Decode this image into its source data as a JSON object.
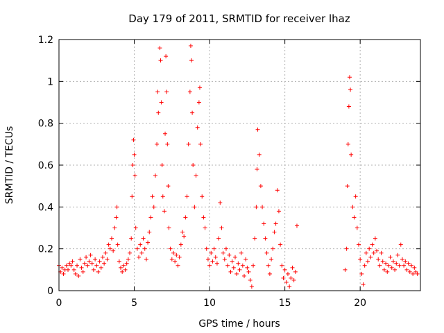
{
  "chart_data": {
    "type": "scatter",
    "title": "Day 179 of 2011, SRMTID for receiver lhaz",
    "xlabel": "GPS time / hours",
    "ylabel": "SRMTID / TECUs",
    "xlim": [
      0,
      24
    ],
    "ylim": [
      0,
      1.2
    ],
    "xticks": [
      0,
      5,
      10,
      15,
      20
    ],
    "xtick_labels": [
      "0",
      "5",
      "10",
      "15",
      "20"
    ],
    "yticks": [
      0,
      0.2,
      0.4,
      0.6,
      0.8,
      1.0,
      1.2
    ],
    "ytick_labels": [
      "0",
      "0.2",
      "0.4",
      "0.6",
      "0.8",
      "1",
      "1.2"
    ],
    "grid": true,
    "marker": "plus",
    "color": "#ff0000",
    "series": [
      {
        "name": "SRMTID",
        "points": [
          [
            0.0,
            0.12
          ],
          [
            0.1,
            0.09
          ],
          [
            0.2,
            0.11
          ],
          [
            0.3,
            0.08
          ],
          [
            0.4,
            0.1
          ],
          [
            0.5,
            0.12
          ],
          [
            0.6,
            0.1
          ],
          [
            0.7,
            0.13
          ],
          [
            0.8,
            0.12
          ],
          [
            0.9,
            0.14
          ],
          [
            1.0,
            0.1
          ],
          [
            1.1,
            0.08
          ],
          [
            1.2,
            0.12
          ],
          [
            1.3,
            0.07
          ],
          [
            1.4,
            0.15
          ],
          [
            1.5,
            0.11
          ],
          [
            1.6,
            0.09
          ],
          [
            1.7,
            0.13
          ],
          [
            1.8,
            0.16
          ],
          [
            1.9,
            0.12
          ],
          [
            2.0,
            0.14
          ],
          [
            2.1,
            0.17
          ],
          [
            2.2,
            0.13
          ],
          [
            2.3,
            0.1
          ],
          [
            2.4,
            0.15
          ],
          [
            2.5,
            0.12
          ],
          [
            2.6,
            0.09
          ],
          [
            2.7,
            0.14
          ],
          [
            2.8,
            0.11
          ],
          [
            2.9,
            0.16
          ],
          [
            3.0,
            0.13
          ],
          [
            3.1,
            0.18
          ],
          [
            3.2,
            0.15
          ],
          [
            3.3,
            0.22
          ],
          [
            3.4,
            0.2
          ],
          [
            3.5,
            0.25
          ],
          [
            3.6,
            0.19
          ],
          [
            3.7,
            0.3
          ],
          [
            3.8,
            0.35
          ],
          [
            3.85,
            0.4
          ],
          [
            3.9,
            0.22
          ],
          [
            4.0,
            0.14
          ],
          [
            4.1,
            0.11
          ],
          [
            4.2,
            0.09
          ],
          [
            4.3,
            0.12
          ],
          [
            4.4,
            0.1
          ],
          [
            4.5,
            0.13
          ],
          [
            4.6,
            0.15
          ],
          [
            4.7,
            0.18
          ],
          [
            4.8,
            0.25
          ],
          [
            4.85,
            0.45
          ],
          [
            4.9,
            0.6
          ],
          [
            4.95,
            0.72
          ],
          [
            5.0,
            0.65
          ],
          [
            5.05,
            0.55
          ],
          [
            5.1,
            0.3
          ],
          [
            5.2,
            0.2
          ],
          [
            5.3,
            0.16
          ],
          [
            5.4,
            0.22
          ],
          [
            5.5,
            0.18
          ],
          [
            5.6,
            0.25
          ],
          [
            5.7,
            0.2
          ],
          [
            5.8,
            0.15
          ],
          [
            5.9,
            0.23
          ],
          [
            6.0,
            0.28
          ],
          [
            6.1,
            0.35
          ],
          [
            6.2,
            0.45
          ],
          [
            6.3,
            0.4
          ],
          [
            6.4,
            0.55
          ],
          [
            6.5,
            0.7
          ],
          [
            6.55,
            0.95
          ],
          [
            6.6,
            0.85
          ],
          [
            6.7,
            1.16
          ],
          [
            6.75,
            1.1
          ],
          [
            6.8,
            0.9
          ],
          [
            6.85,
            0.6
          ],
          [
            6.9,
            0.45
          ],
          [
            7.0,
            0.38
          ],
          [
            7.05,
            0.75
          ],
          [
            7.1,
            1.12
          ],
          [
            7.15,
            0.95
          ],
          [
            7.2,
            0.7
          ],
          [
            7.25,
            0.5
          ],
          [
            7.3,
            0.3
          ],
          [
            7.4,
            0.2
          ],
          [
            7.5,
            0.15
          ],
          [
            7.6,
            0.18
          ],
          [
            7.7,
            0.14
          ],
          [
            7.8,
            0.17
          ],
          [
            7.9,
            0.12
          ],
          [
            8.0,
            0.16
          ],
          [
            8.1,
            0.22
          ],
          [
            8.2,
            0.28
          ],
          [
            8.3,
            0.26
          ],
          [
            8.4,
            0.35
          ],
          [
            8.5,
            0.45
          ],
          [
            8.6,
            0.7
          ],
          [
            8.7,
            0.95
          ],
          [
            8.75,
            1.17
          ],
          [
            8.8,
            1.1
          ],
          [
            8.85,
            0.85
          ],
          [
            8.9,
            0.6
          ],
          [
            9.0,
            0.4
          ],
          [
            9.1,
            0.55
          ],
          [
            9.2,
            0.78
          ],
          [
            9.3,
            0.9
          ],
          [
            9.35,
            0.97
          ],
          [
            9.4,
            0.7
          ],
          [
            9.5,
            0.45
          ],
          [
            9.6,
            0.35
          ],
          [
            9.7,
            0.3
          ],
          [
            9.8,
            0.2
          ],
          [
            9.9,
            0.15
          ],
          [
            10.0,
            0.12
          ],
          [
            10.1,
            0.18
          ],
          [
            10.2,
            0.14
          ],
          [
            10.3,
            0.2
          ],
          [
            10.4,
            0.16
          ],
          [
            10.5,
            0.13
          ],
          [
            10.6,
            0.25
          ],
          [
            10.7,
            0.42
          ],
          [
            10.8,
            0.3
          ],
          [
            10.9,
            0.18
          ],
          [
            11.0,
            0.15
          ],
          [
            11.1,
            0.2
          ],
          [
            11.2,
            0.12
          ],
          [
            11.3,
            0.17
          ],
          [
            11.4,
            0.09
          ],
          [
            11.5,
            0.14
          ],
          [
            11.6,
            0.11
          ],
          [
            11.7,
            0.16
          ],
          [
            11.8,
            0.08
          ],
          [
            11.9,
            0.13
          ],
          [
            12.0,
            0.1
          ],
          [
            12.1,
            0.18
          ],
          [
            12.2,
            0.12
          ],
          [
            12.3,
            0.07
          ],
          [
            12.4,
            0.15
          ],
          [
            12.5,
            0.11
          ],
          [
            12.6,
            0.09
          ],
          [
            12.7,
            0.05
          ],
          [
            12.8,
            0.02
          ],
          [
            12.9,
            0.12
          ],
          [
            13.0,
            0.25
          ],
          [
            13.1,
            0.4
          ],
          [
            13.15,
            0.58
          ],
          [
            13.2,
            0.77
          ],
          [
            13.3,
            0.65
          ],
          [
            13.4,
            0.5
          ],
          [
            13.5,
            0.4
          ],
          [
            13.6,
            0.32
          ],
          [
            13.7,
            0.25
          ],
          [
            13.8,
            0.18
          ],
          [
            13.9,
            0.12
          ],
          [
            14.0,
            0.08
          ],
          [
            14.1,
            0.15
          ],
          [
            14.2,
            0.2
          ],
          [
            14.3,
            0.28
          ],
          [
            14.4,
            0.32
          ],
          [
            14.5,
            0.48
          ],
          [
            14.6,
            0.38
          ],
          [
            14.7,
            0.22
          ],
          [
            14.8,
            0.12
          ],
          [
            14.9,
            0.06
          ],
          [
            15.0,
            0.1
          ],
          [
            15.1,
            0.04
          ],
          [
            15.2,
            0.08
          ],
          [
            15.3,
            0.02
          ],
          [
            15.4,
            0.06
          ],
          [
            15.5,
            0.11
          ],
          [
            15.6,
            0.05
          ],
          [
            15.7,
            0.09
          ],
          [
            15.8,
            0.31
          ],
          [
            19.0,
            0.1
          ],
          [
            19.1,
            0.2
          ],
          [
            19.15,
            0.5
          ],
          [
            19.2,
            0.7
          ],
          [
            19.25,
            0.88
          ],
          [
            19.3,
            1.02
          ],
          [
            19.35,
            0.96
          ],
          [
            19.4,
            0.65
          ],
          [
            19.5,
            0.4
          ],
          [
            19.6,
            0.35
          ],
          [
            19.7,
            0.45
          ],
          [
            19.8,
            0.3
          ],
          [
            19.9,
            0.22
          ],
          [
            20.0,
            0.15
          ],
          [
            20.1,
            0.08
          ],
          [
            20.2,
            0.03
          ],
          [
            20.3,
            0.12
          ],
          [
            20.4,
            0.18
          ],
          [
            20.5,
            0.14
          ],
          [
            20.6,
            0.2
          ],
          [
            20.7,
            0.16
          ],
          [
            20.8,
            0.22
          ],
          [
            20.9,
            0.18
          ],
          [
            21.0,
            0.25
          ],
          [
            21.1,
            0.19
          ],
          [
            21.2,
            0.15
          ],
          [
            21.3,
            0.12
          ],
          [
            21.4,
            0.18
          ],
          [
            21.5,
            0.14
          ],
          [
            21.6,
            0.1
          ],
          [
            21.7,
            0.13
          ],
          [
            21.8,
            0.09
          ],
          [
            21.9,
            0.12
          ],
          [
            22.0,
            0.16
          ],
          [
            22.1,
            0.11
          ],
          [
            22.2,
            0.14
          ],
          [
            22.3,
            0.1
          ],
          [
            22.4,
            0.13
          ],
          [
            22.5,
            0.17
          ],
          [
            22.6,
            0.12
          ],
          [
            22.7,
            0.22
          ],
          [
            22.8,
            0.15
          ],
          [
            22.9,
            0.12
          ],
          [
            23.0,
            0.14
          ],
          [
            23.1,
            0.1
          ],
          [
            23.2,
            0.13
          ],
          [
            23.3,
            0.09
          ],
          [
            23.4,
            0.12
          ],
          [
            23.5,
            0.08
          ],
          [
            23.6,
            0.11
          ],
          [
            23.7,
            0.09
          ],
          [
            23.8,
            0.08
          ]
        ]
      }
    ]
  }
}
